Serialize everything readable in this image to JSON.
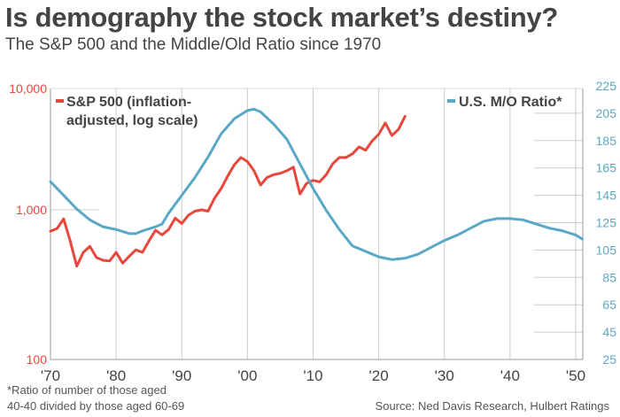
{
  "header": {
    "title": "Is demography the stock market’s destiny?",
    "subtitle": "The S&P 500 and the Middle/Old Ratio since 1970"
  },
  "footer": {
    "note_line1": "*Ratio of number of those aged",
    "note_line2": "40-40 divided by those aged 60-69",
    "source": "Source: Ned Davis Research, Hulbert Ratings"
  },
  "colors": {
    "sp500": "#e8473b",
    "mo_ratio": "#5aa8c6",
    "grid": "#cccccc",
    "text": "#444444"
  },
  "chart_data": {
    "type": "line",
    "title": "Is demography the stock market’s destiny?",
    "subtitle": "The S&P 500 and the Middle/Old Ratio since 1970",
    "x_tick_labels": [
      "'70",
      "'80",
      "'90",
      "'00",
      "'10",
      "'20",
      "'30",
      "'40",
      "'50"
    ],
    "x_ticks": [
      1970,
      1980,
      1990,
      2000,
      2010,
      2020,
      2030,
      2040,
      2050
    ],
    "xlim": [
      1970,
      2051
    ],
    "left_axis": {
      "scale": "log",
      "ylim": [
        100,
        10000
      ],
      "tick_labels": [
        "10,000",
        "1,000",
        "100"
      ],
      "ticks": [
        10000,
        1000,
        100
      ]
    },
    "right_axis": {
      "scale": "linear",
      "ylim": [
        25,
        225
      ],
      "tick_labels": [
        "225",
        "205",
        "185",
        "165",
        "145",
        "125",
        "105",
        "85",
        "65",
        "45",
        "25"
      ],
      "ticks": [
        225,
        205,
        185,
        165,
        145,
        125,
        105,
        85,
        65,
        45,
        25
      ]
    },
    "legend": [
      {
        "name": "S&P 500 (inflation-adjusted, log scale)",
        "line1": "S&P 500 (inflation-",
        "line2": "adjusted, log scale)",
        "axis": "left",
        "placement": "top-left"
      },
      {
        "name": "U.S. M/O Ratio*",
        "line1": "U.S. M/O Ratio*",
        "axis": "right",
        "placement": "top-right"
      }
    ],
    "series": [
      {
        "name": "S&P 500 (inflation-adjusted, log scale)",
        "axis": "left",
        "x": [
          1970,
          1971,
          1972,
          1973,
          1974,
          1975,
          1976,
          1977,
          1978,
          1979,
          1980,
          1981,
          1982,
          1983,
          1984,
          1985,
          1986,
          1987,
          1988,
          1989,
          1990,
          1991,
          1992,
          1993,
          1994,
          1995,
          1996,
          1997,
          1998,
          1999,
          2000,
          2001,
          2002,
          2003,
          2004,
          2005,
          2006,
          2007,
          2008,
          2009,
          2010,
          2011,
          2012,
          2013,
          2014,
          2015,
          2016,
          2017,
          2018,
          2019,
          2020,
          2021,
          2022,
          2023,
          2024
        ],
        "values": [
          720,
          750,
          870,
          620,
          420,
          520,
          570,
          480,
          460,
          455,
          520,
          440,
          490,
          540,
          520,
          620,
          730,
          680,
          740,
          880,
          810,
          920,
          980,
          1000,
          980,
          1250,
          1500,
          1900,
          2350,
          2700,
          2500,
          2100,
          1600,
          1850,
          1950,
          2000,
          2100,
          2250,
          1350,
          1650,
          1750,
          1700,
          1950,
          2400,
          2700,
          2700,
          2900,
          3300,
          3100,
          3700,
          4200,
          5200,
          4100,
          4600,
          5900
        ]
      },
      {
        "name": "U.S. M/O Ratio*",
        "axis": "right",
        "x": [
          1970,
          1972,
          1974,
          1976,
          1978,
          1980,
          1982,
          1983,
          1984,
          1986,
          1987,
          1988,
          1990,
          1992,
          1994,
          1996,
          1998,
          2000,
          2001,
          2002,
          2004,
          2006,
          2008,
          2010,
          2012,
          2014,
          2016,
          2018,
          2020,
          2022,
          2024,
          2026,
          2028,
          2030,
          2032,
          2034,
          2036,
          2038,
          2040,
          2042,
          2044,
          2046,
          2048,
          2050,
          2051
        ],
        "values": [
          155,
          145,
          135,
          127,
          122,
          120,
          117,
          117,
          119,
          122,
          124,
          132,
          145,
          158,
          173,
          190,
          201,
          207,
          208,
          206,
          197,
          186,
          168,
          150,
          134,
          120,
          108,
          104,
          100,
          98,
          99,
          102,
          107,
          112,
          116,
          121,
          126,
          128,
          128,
          127,
          124,
          121,
          119,
          116,
          113
        ]
      }
    ]
  }
}
